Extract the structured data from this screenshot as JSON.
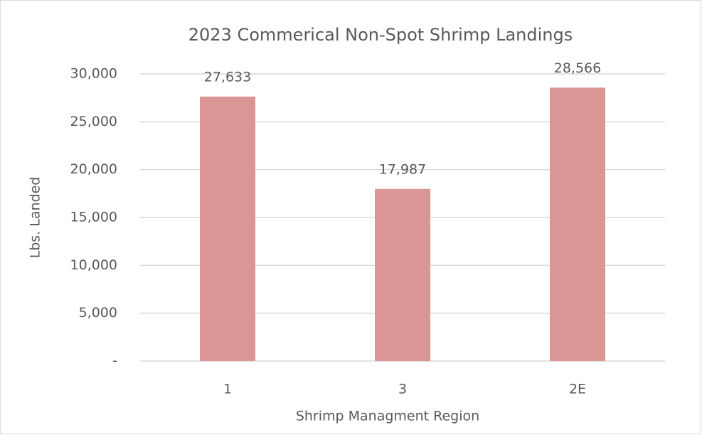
{
  "chart_data": {
    "type": "bar",
    "title": "2023 Commerical Non-Spot Shrimp Landings",
    "x_label": "Shrimp Managment Region",
    "y_label": "Lbs. Landed",
    "categories": [
      "1",
      "3",
      "2E"
    ],
    "values": [
      27633,
      17987,
      28566
    ],
    "value_labels": [
      "27,633",
      "17,987",
      "28,566"
    ],
    "color": "#d99694",
    "ylim": [
      0,
      30000
    ],
    "yticks": [
      {
        "value": 0,
        "label": "-"
      },
      {
        "value": 5000,
        "label": "5,000"
      },
      {
        "value": 10000,
        "label": "10,000"
      },
      {
        "value": 15000,
        "label": "15,000"
      },
      {
        "value": 20000,
        "label": "20,000"
      },
      {
        "value": 25000,
        "label": "25,000"
      },
      {
        "value": 30000,
        "label": "30,000"
      }
    ],
    "grid": true
  }
}
